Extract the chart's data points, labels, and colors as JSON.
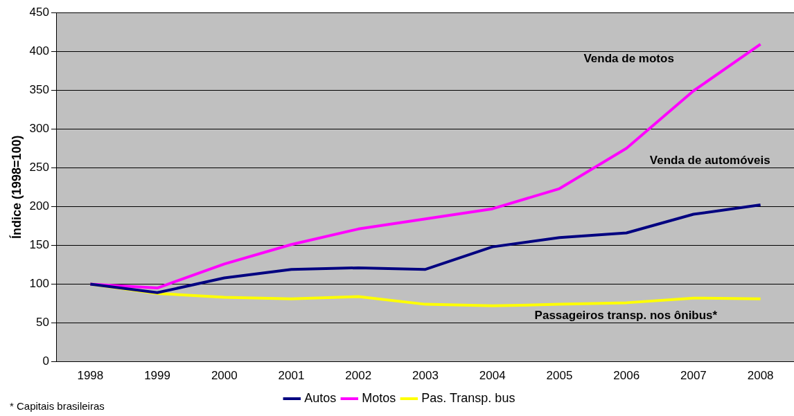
{
  "chart_data": {
    "type": "line",
    "ylabel": "Índice (1998=100)",
    "categories": [
      "1998",
      "1999",
      "2000",
      "2001",
      "2002",
      "2003",
      "2004",
      "2005",
      "2006",
      "2007",
      "2008"
    ],
    "series": [
      {
        "name": "Autos",
        "color": "#000080",
        "values": [
          100,
          89,
          108,
          119,
          121,
          119,
          148,
          160,
          166,
          190,
          202
        ]
      },
      {
        "name": "Motos",
        "color": "#ff00ff",
        "values": [
          100,
          95,
          126,
          151,
          171,
          184,
          197,
          223,
          275,
          349,
          409
        ]
      },
      {
        "name": "Pas. Transp. bus",
        "color": "#ffff00",
        "values": [
          100,
          88,
          83,
          81,
          84,
          74,
          72,
          74,
          76,
          82,
          81
        ]
      }
    ],
    "ylim": [
      0,
      450
    ],
    "yticks": [
      0,
      50,
      100,
      150,
      200,
      250,
      300,
      350,
      400,
      450
    ],
    "grid": "y",
    "legend": "bottom",
    "marker": "none",
    "line_style": "solid",
    "annotations": [
      "Venda de motos",
      "Venda de automóveis",
      "Passageiros transp. nos ônibus*",
      "* Capitais brasileiras"
    ]
  }
}
